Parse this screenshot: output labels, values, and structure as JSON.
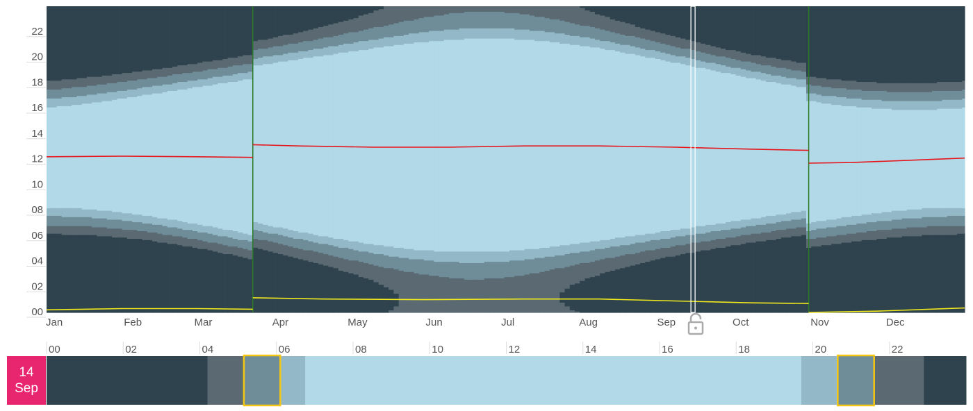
{
  "chart_data": [
    {
      "type": "heatmap",
      "description_axes": "x = day of year (months), y = hour of day",
      "x_categories": [
        "Jan",
        "Feb",
        "Mar",
        "Apr",
        "May",
        "Jun",
        "Jul",
        "Aug",
        "Sep",
        "Oct",
        "Nov",
        "Dec"
      ],
      "y_tick_labels": [
        "00",
        "02",
        "04",
        "06",
        "08",
        "10",
        "12",
        "14",
        "16",
        "18",
        "20",
        "22"
      ],
      "ylim": [
        0,
        24
      ],
      "xlim_days": [
        0,
        365
      ],
      "bands": [
        {
          "name": "night",
          "color": "#2e434d"
        },
        {
          "name": "astronomical twilight",
          "color": "#5b6a72"
        },
        {
          "name": "nautical twilight",
          "color": "#6e8d99"
        },
        {
          "name": "civil twilight",
          "color": "#93b8c7"
        },
        {
          "name": "day",
          "color": "#b1d9e7"
        }
      ],
      "dst_transitions_day": [
        82,
        303
      ],
      "dst_line_color": "#2a7a2a",
      "selected_day": 257,
      "cursor_color": "#ffffff",
      "series": [
        {
          "name": "solar noon",
          "color": "#e8141b",
          "points": [
            [
              0,
              12.2
            ],
            [
              30,
              12.25
            ],
            [
              60,
              12.2
            ],
            [
              82,
              12.15
            ],
            [
              82,
              13.15
            ],
            [
              100,
              13.05
            ],
            [
              130,
              12.95
            ],
            [
              160,
              12.95
            ],
            [
              190,
              13.05
            ],
            [
              220,
              13.05
            ],
            [
              250,
              12.95
            ],
            [
              280,
              12.8
            ],
            [
              303,
              12.7
            ],
            [
              303,
              11.7
            ],
            [
              320,
              11.75
            ],
            [
              340,
              11.9
            ],
            [
              365,
              12.1
            ]
          ]
        },
        {
          "name": "solar midnight",
          "color": "#f2ea1c",
          "points": [
            [
              0,
              0.2
            ],
            [
              30,
              0.3
            ],
            [
              60,
              0.3
            ],
            [
              82,
              0.25
            ],
            [
              82,
              1.15
            ],
            [
              110,
              1.05
            ],
            [
              150,
              1.0
            ],
            [
              190,
              1.05
            ],
            [
              220,
              1.05
            ],
            [
              250,
              0.9
            ],
            [
              280,
              0.75
            ],
            [
              303,
              0.7
            ],
            [
              303,
              0.0
            ],
            [
              330,
              0.1
            ],
            [
              365,
              0.35
            ]
          ]
        }
      ]
    },
    {
      "type": "bar",
      "description_axes": "selected day strip, x = hour of day",
      "x_tick_labels": [
        "00",
        "02",
        "04",
        "06",
        "08",
        "10",
        "12",
        "14",
        "16",
        "18",
        "20",
        "22"
      ],
      "xlim": [
        0,
        24
      ],
      "segments": [
        {
          "start": 0,
          "end": 4.2,
          "band": "night"
        },
        {
          "start": 4.2,
          "end": 5.15,
          "band": "astronomical twilight"
        },
        {
          "start": 5.15,
          "end": 6.1,
          "band": "nautical twilight"
        },
        {
          "start": 6.1,
          "end": 6.75,
          "band": "civil twilight"
        },
        {
          "start": 6.75,
          "end": 19.7,
          "band": "day"
        },
        {
          "start": 19.7,
          "end": 20.65,
          "band": "civil twilight"
        },
        {
          "start": 20.65,
          "end": 21.6,
          "band": "nautical twilight"
        },
        {
          "start": 21.6,
          "end": 22.9,
          "band": "astronomical twilight"
        },
        {
          "start": 22.9,
          "end": 24,
          "band": "night"
        }
      ],
      "highlights": [
        {
          "start": 5.15,
          "end": 6.1
        },
        {
          "start": 20.65,
          "end": 21.6
        }
      ],
      "highlight_color": "#f5c710"
    }
  ],
  "date_badge": {
    "day": "14",
    "month": "Sep"
  },
  "icons": {
    "lock": "unlocked-padlock-icon"
  }
}
